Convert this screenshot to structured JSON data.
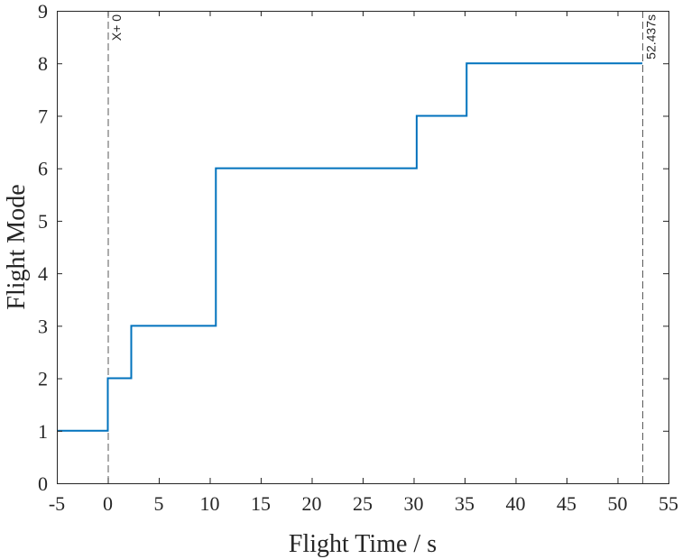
{
  "chart_data": {
    "type": "line",
    "title": "",
    "xlabel": "Flight Time / s",
    "ylabel": "Flight Mode",
    "xlim": [
      -5,
      55
    ],
    "ylim": [
      0,
      9
    ],
    "xticks": [
      -5,
      0,
      5,
      10,
      15,
      20,
      25,
      30,
      35,
      40,
      45,
      50,
      55
    ],
    "yticks": [
      0,
      1,
      2,
      3,
      4,
      5,
      6,
      7,
      8,
      9
    ],
    "grid": false,
    "series": [
      {
        "color": "#0072BD",
        "step": true,
        "x": [
          -5,
          0,
          0,
          2.3,
          2.3,
          10.6,
          10.6,
          30.3,
          30.3,
          35.2,
          35.2,
          52.437
        ],
        "y": [
          1,
          1,
          2,
          2,
          3,
          3,
          6,
          6,
          7,
          7,
          8,
          8
        ]
      }
    ],
    "annotations": [
      {
        "type": "vline",
        "x": 0,
        "label": "X+ 0",
        "style": "dashed",
        "color": "#595959"
      },
      {
        "type": "vline",
        "x": 52.437,
        "label": "52.437s",
        "style": "dashed",
        "color": "#595959"
      }
    ]
  }
}
